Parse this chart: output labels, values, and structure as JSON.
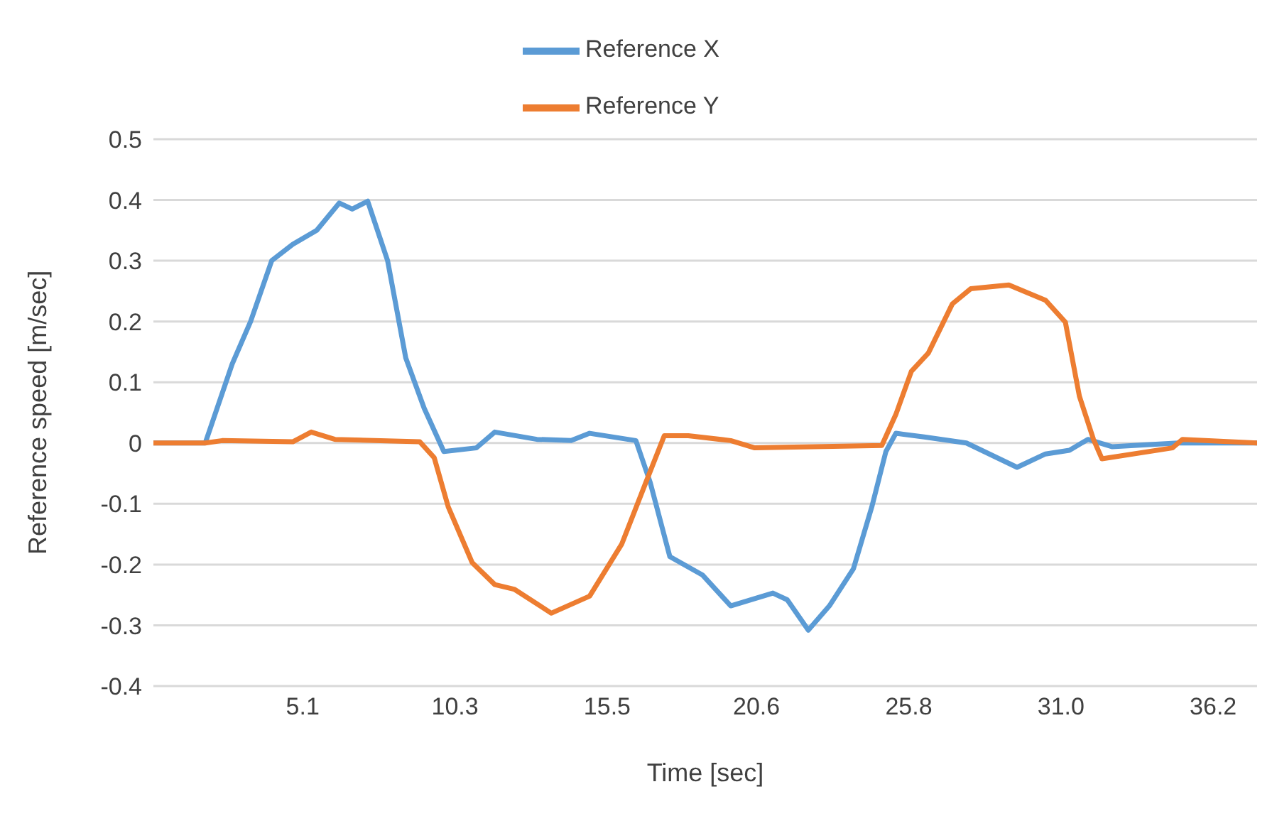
{
  "chart_data": {
    "type": "line",
    "xlabel": "Time [sec]",
    "ylabel": "Reference speed [m/sec]",
    "xlim": [
      0,
      37.7
    ],
    "xticks": [
      5.1,
      10.3,
      15.5,
      20.6,
      25.8,
      {
        "value": 31,
        "label": "31.0"
      },
      36.2
    ],
    "ylim": [
      -0.4,
      0.5
    ],
    "yticks": [
      -0.4,
      -0.3,
      -0.2,
      -0.1,
      0,
      0.1,
      0.2,
      0.3,
      0.4,
      0.5
    ],
    "grid": "y",
    "legend": "top",
    "marker": "none",
    "line_style": "solid",
    "series": [
      {
        "name": "Reference X",
        "color": "#5b9bd5",
        "x": [
          0,
          1.77,
          2.69,
          3.32,
          4.04,
          4.76,
          5.58,
          6.35,
          6.79,
          7.32,
          8.0,
          8.62,
          9.25,
          9.92,
          11.03,
          11.66,
          13.1,
          14.27,
          14.9,
          16.48,
          16.97,
          17.64,
          18.75,
          19.72,
          21.16,
          21.65,
          22.37,
          23.09,
          23.91,
          24.54,
          25.02,
          25.36,
          26.33,
          27.77,
          29.5,
          30.47,
          31.29,
          31.92,
          32.74,
          35.0,
          37.7
        ],
        "values": [
          0,
          0,
          0.13,
          0.2,
          0.3,
          0.327,
          0.35,
          0.395,
          0.385,
          0.398,
          0.3,
          0.14,
          0.057,
          -0.014,
          -0.008,
          0.018,
          0.006,
          0.004,
          0.016,
          0.004,
          -0.065,
          -0.187,
          -0.217,
          -0.268,
          -0.247,
          -0.258,
          -0.308,
          -0.268,
          -0.207,
          -0.105,
          -0.014,
          0.016,
          0.01,
          0,
          -0.04,
          -0.018,
          -0.012,
          0.006,
          -0.006,
          0,
          0
        ]
      },
      {
        "name": "Reference Y",
        "color": "#ed7d31",
        "x": [
          0,
          1.77,
          2.35,
          4.76,
          5.39,
          6.2,
          9.1,
          9.59,
          10.07,
          10.89,
          11.66,
          12.34,
          13.59,
          14.9,
          16.0,
          16.82,
          17.45,
          18.27,
          19.72,
          20.54,
          24.88,
          25.36,
          25.89,
          26.47,
          27.29,
          27.92,
          29.22,
          30.47,
          31.15,
          31.63,
          32.11,
          32.4,
          34.81,
          35.15,
          37.7
        ],
        "values": [
          0,
          0,
          0.004,
          0.002,
          0.018,
          0.006,
          0.002,
          -0.024,
          -0.105,
          -0.197,
          -0.233,
          -0.241,
          -0.28,
          -0.252,
          -0.166,
          -0.065,
          0.012,
          0.012,
          0.004,
          -0.008,
          -0.004,
          0.047,
          0.118,
          0.148,
          0.229,
          0.254,
          0.26,
          0.235,
          0.199,
          0.077,
          0.006,
          -0.026,
          -0.008,
          0.006,
          0
        ]
      }
    ]
  }
}
